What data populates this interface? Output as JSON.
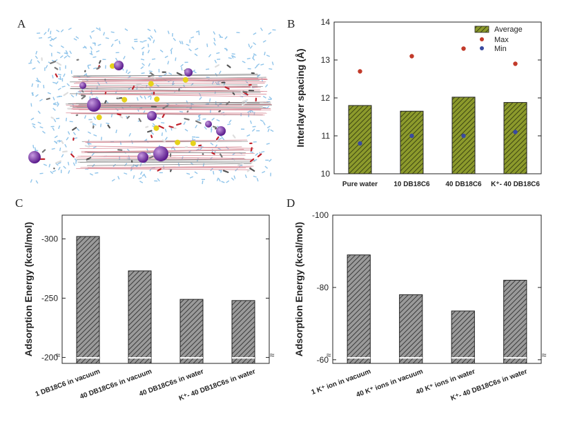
{
  "panels": {
    "A": {
      "label": "A"
    },
    "B": {
      "label": "B"
    },
    "C": {
      "label": "C"
    },
    "D": {
      "label": "D"
    }
  },
  "chart_data": [
    {
      "panel": "B",
      "type": "bar",
      "ylabel": "Interlayer spacing (Å)",
      "ylim": [
        10,
        14
      ],
      "yticks": [
        10,
        11,
        12,
        13,
        14
      ],
      "categories": [
        "Pure water",
        "10 DB18C6",
        "40 DB18C6",
        "K⁺- 40 DB18C6"
      ],
      "series": [
        {
          "name": "Average",
          "kind": "bar",
          "values": [
            11.8,
            11.65,
            12.02,
            11.88
          ],
          "color": "#6b7a1e"
        },
        {
          "name": "Max",
          "kind": "point",
          "values": [
            12.7,
            13.1,
            13.3,
            12.9
          ],
          "color": "#c23a2a"
        },
        {
          "name": "Min",
          "kind": "point",
          "values": [
            10.8,
            11.0,
            11.0,
            11.1
          ],
          "color": "#3a4aa0"
        }
      ],
      "legend": "top-right",
      "grid": false
    },
    {
      "panel": "C",
      "type": "bar",
      "ylabel": "Adsorption Energy (kcal/mol)",
      "ylim": [
        -195,
        -320
      ],
      "yticks": [
        -200,
        -250,
        -300
      ],
      "axis_break": true,
      "categories": [
        "1 DB18C6 in vacuum",
        "40 DB18C6s in vacuum",
        "40 DB18C6s in water",
        "K⁺- 40 DB18C6s in water"
      ],
      "values": [
        -302,
        -273,
        -249,
        -248
      ],
      "color": "#777777",
      "grid": false
    },
    {
      "panel": "D",
      "type": "bar",
      "ylabel": "Adsorption Energy (kcal/mol)",
      "ylim": [
        -59,
        -100
      ],
      "yticks": [
        -60,
        -80,
        -100
      ],
      "axis_break": true,
      "categories": [
        "1 K⁺ ion in vacuum",
        "40 K⁺ ions in vacuum",
        "40 K⁺ ions in water",
        "K⁺- 40 DB18C6s in water"
      ],
      "values": [
        -89,
        -78,
        -73.5,
        -82
      ],
      "color": "#777777",
      "grid": false
    }
  ]
}
